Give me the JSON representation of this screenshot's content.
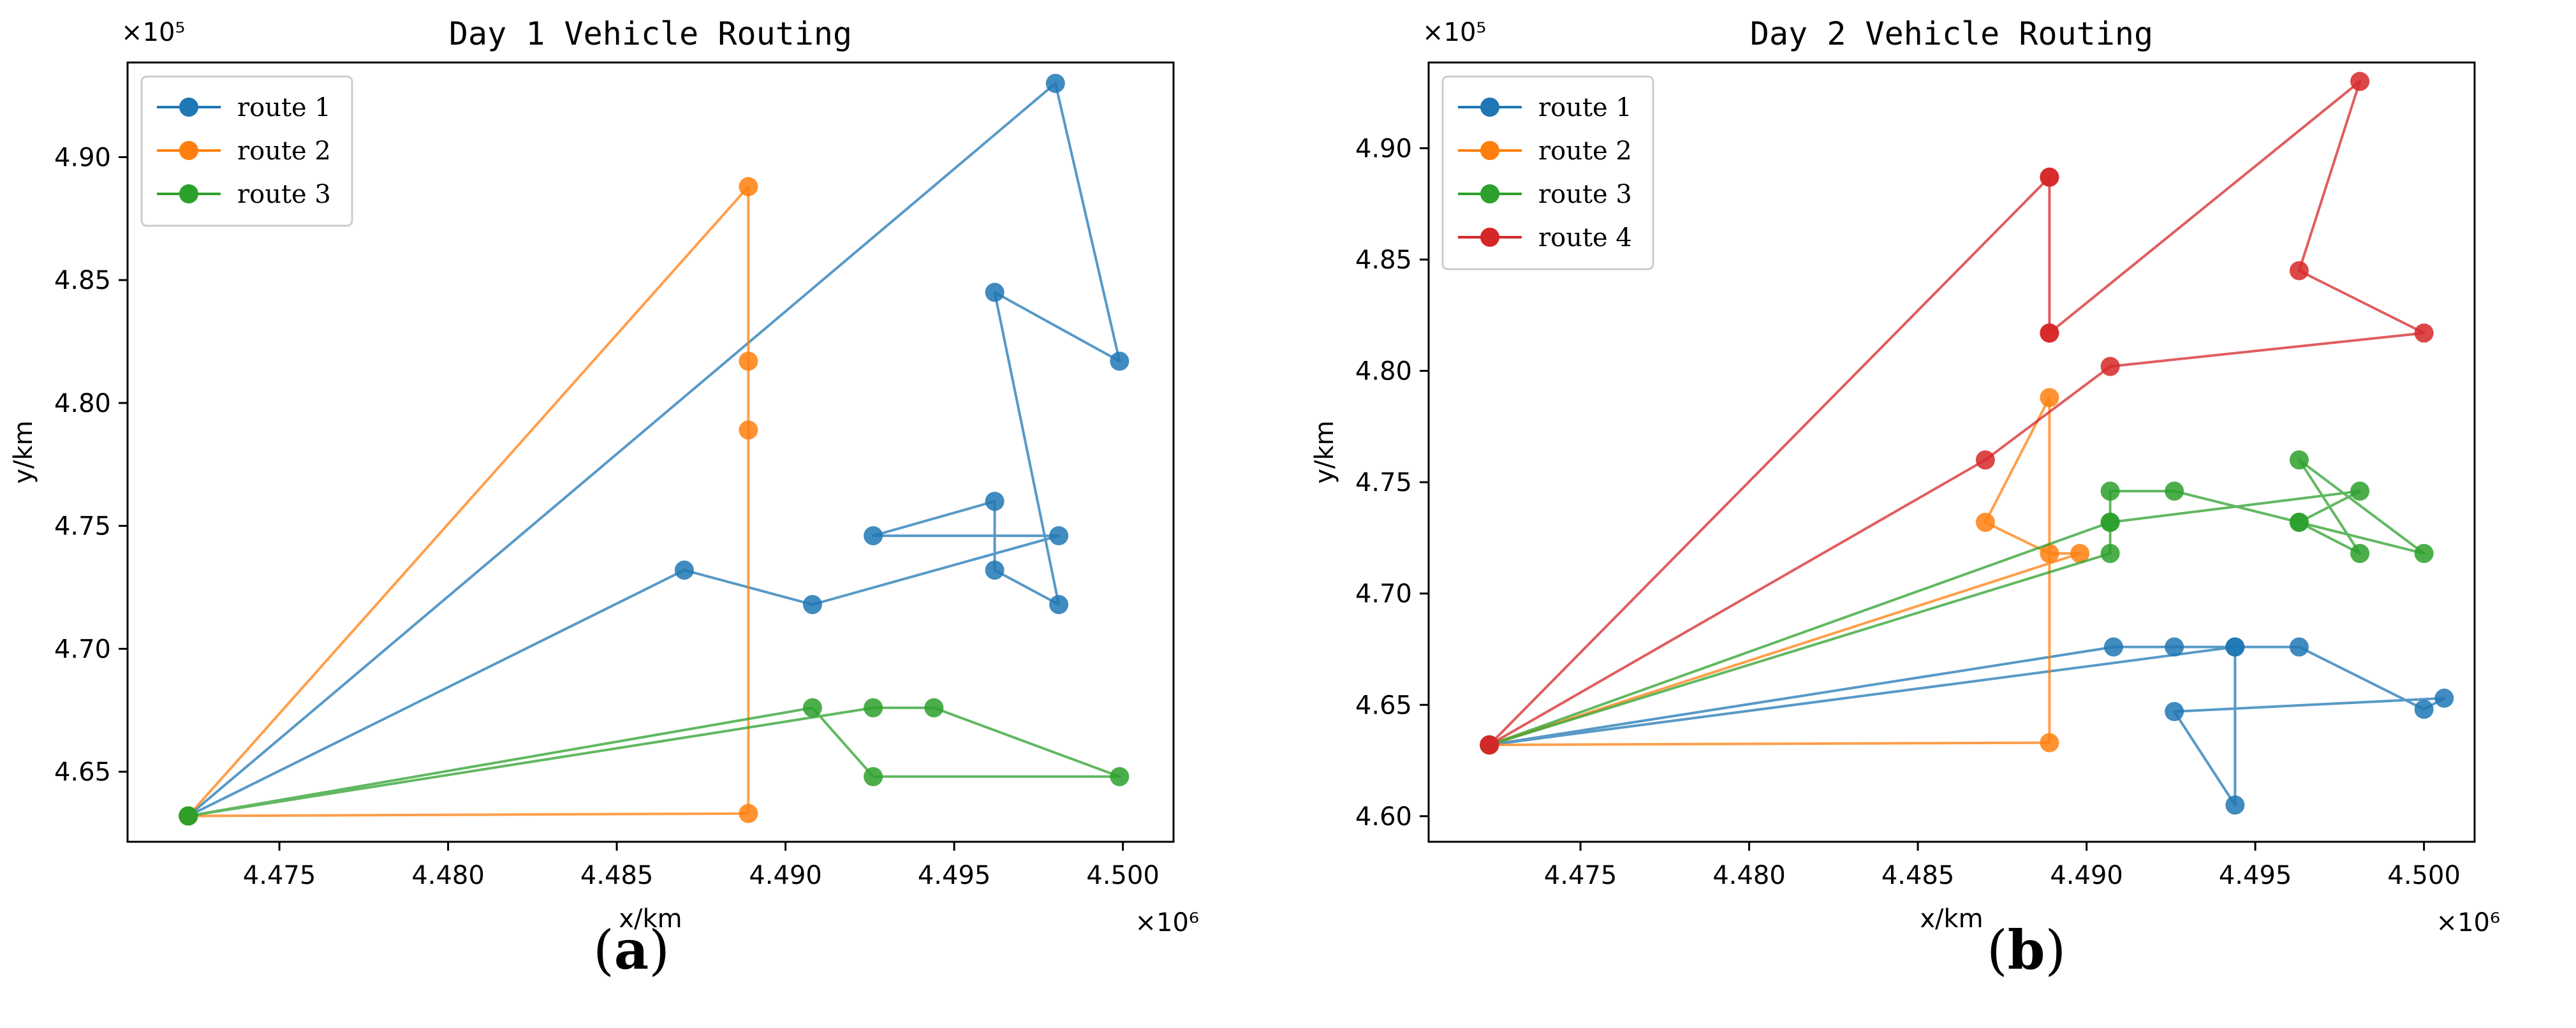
{
  "figure": {
    "caption_a": {
      "open": "(",
      "label": "a",
      "close": ")"
    },
    "caption_b": {
      "open": "(",
      "label": "b",
      "close": ")"
    }
  },
  "chart_data": [
    {
      "type": "line",
      "title": "Day 1 Vehicle Routing",
      "xlabel": "x/km",
      "ylabel": "y/km",
      "x_offset_label": "×10⁶",
      "y_offset_label": "×10⁵",
      "xlim": [
        4.4705,
        4.5015
      ],
      "ylim": [
        4.6215,
        4.9385
      ],
      "xticks": [
        4.475,
        4.48,
        4.485,
        4.49,
        4.495,
        4.5
      ],
      "xtick_labels": [
        "4.475",
        "4.480",
        "4.485",
        "4.490",
        "4.495",
        "4.500"
      ],
      "yticks": [
        4.65,
        4.7,
        4.75,
        4.8,
        4.85,
        4.9
      ],
      "ytick_labels": [
        "4.65",
        "4.70",
        "4.75",
        "4.80",
        "4.85",
        "4.90"
      ],
      "legend_position": "top-left",
      "series": [
        {
          "name": "route 1",
          "color": "#1f77b4",
          "x": [
            4.4723,
            4.498,
            4.4999,
            4.4962,
            4.4981,
            4.4962,
            4.4962,
            4.4926,
            4.4981,
            4.4908,
            4.487,
            4.4723
          ],
          "y": [
            4.632,
            4.93,
            4.817,
            4.845,
            4.718,
            4.732,
            4.76,
            4.746,
            4.746,
            4.718,
            4.732,
            4.632
          ]
        },
        {
          "name": "route 2",
          "color": "#ff7f0e",
          "x": [
            4.4723,
            4.4889,
            4.4889,
            4.4889,
            4.4889,
            4.4723
          ],
          "y": [
            4.632,
            4.888,
            4.817,
            4.789,
            4.633,
            4.632
          ]
        },
        {
          "name": "route 3",
          "color": "#2ca02c",
          "x": [
            4.4723,
            4.4908,
            4.4926,
            4.4999,
            4.4944,
            4.4926,
            4.4723
          ],
          "y": [
            4.632,
            4.676,
            4.648,
            4.648,
            4.676,
            4.676,
            4.632
          ]
        }
      ]
    },
    {
      "type": "line",
      "title": "Day 2 Vehicle Routing",
      "xlabel": "x/km",
      "ylabel": "y/km",
      "x_offset_label": "×10⁶",
      "y_offset_label": "×10⁵",
      "xlim": [
        4.4705,
        4.5015
      ],
      "ylim": [
        4.5885,
        4.9385
      ],
      "xticks": [
        4.475,
        4.48,
        4.485,
        4.49,
        4.495,
        4.5
      ],
      "xtick_labels": [
        "4.475",
        "4.480",
        "4.485",
        "4.490",
        "4.495",
        "4.500"
      ],
      "yticks": [
        4.6,
        4.65,
        4.7,
        4.75,
        4.8,
        4.85,
        4.9
      ],
      "ytick_labels": [
        "4.60",
        "4.65",
        "4.70",
        "4.75",
        "4.80",
        "4.85",
        "4.90"
      ],
      "legend_position": "top-left",
      "series": [
        {
          "name": "route 1",
          "color": "#1f77b4",
          "x": [
            4.4723,
            4.4908,
            4.4926,
            4.4944,
            4.4963,
            4.5,
            4.5006,
            4.4926,
            4.4944,
            4.4944,
            4.4723
          ],
          "y": [
            4.632,
            4.676,
            4.676,
            4.676,
            4.676,
            4.648,
            4.653,
            4.647,
            4.605,
            4.676,
            4.632
          ]
        },
        {
          "name": "route 2",
          "color": "#ff7f0e",
          "x": [
            4.4723,
            4.4898,
            4.4889,
            4.487,
            4.4889,
            4.4889,
            4.4723
          ],
          "y": [
            4.632,
            4.718,
            4.718,
            4.732,
            4.788,
            4.633,
            4.632
          ]
        },
        {
          "name": "route 3",
          "color": "#2ca02c",
          "x": [
            4.4723,
            4.4907,
            4.4907,
            4.4907,
            4.4926,
            4.4963,
            4.4981,
            4.4963,
            4.5,
            4.4963,
            4.4981,
            4.4907,
            4.4723
          ],
          "y": [
            4.632,
            4.718,
            4.732,
            4.746,
            4.746,
            4.732,
            4.718,
            4.76,
            4.718,
            4.732,
            4.746,
            4.732,
            4.632
          ]
        },
        {
          "name": "route 4",
          "color": "#d62728",
          "x": [
            4.4723,
            4.487,
            4.4907,
            4.5,
            4.4963,
            4.4981,
            4.4889,
            4.4889,
            4.4889,
            4.4889,
            4.4723
          ],
          "y": [
            4.632,
            4.76,
            4.802,
            4.817,
            4.845,
            4.93,
            4.817,
            4.887,
            4.817,
            4.887,
            4.632
          ]
        }
      ]
    }
  ]
}
